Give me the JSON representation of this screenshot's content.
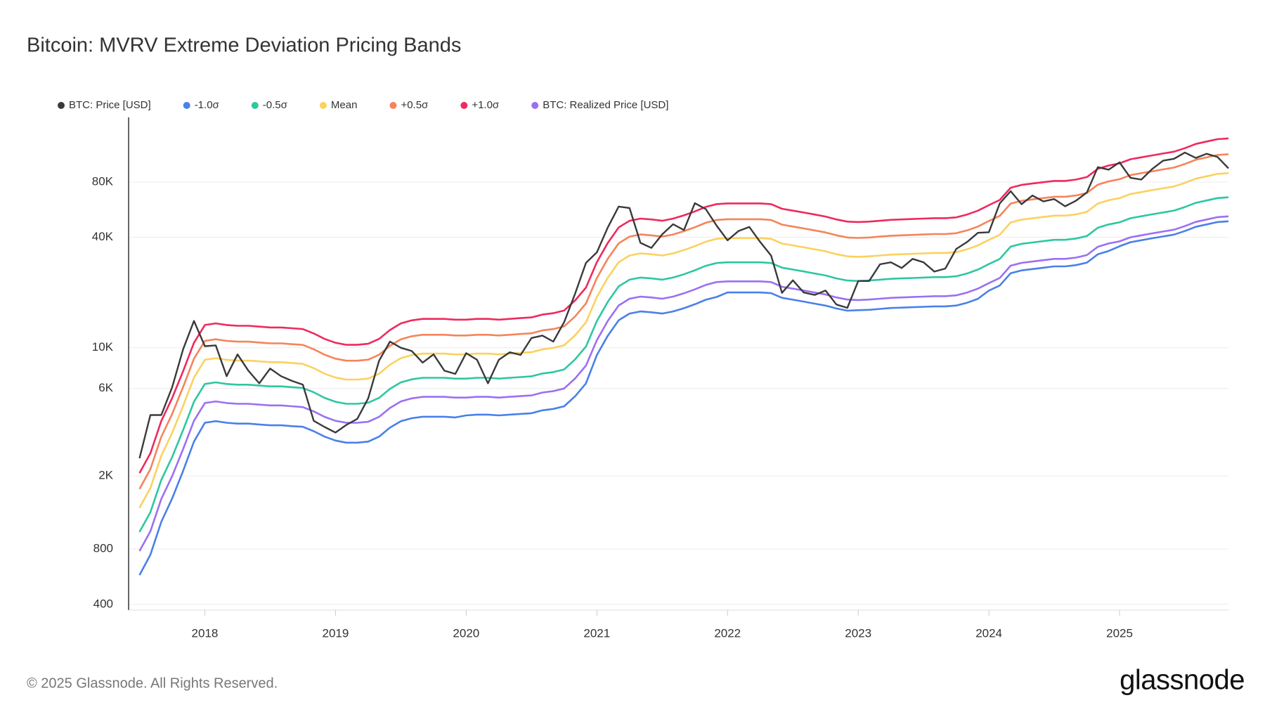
{
  "chart_data": {
    "type": "line",
    "title": "Bitcoin: MVRV Extreme Deviation Pricing Bands",
    "log_scale_y": true,
    "grid": true,
    "legend": "top-left",
    "x": [
      "2017-07",
      "2017-08",
      "2017-09",
      "2017-10",
      "2017-11",
      "2017-12",
      "2018-01",
      "2018-02",
      "2018-03",
      "2018-04",
      "2018-05",
      "2018-06",
      "2018-07",
      "2018-08",
      "2018-09",
      "2018-10",
      "2018-11",
      "2018-12",
      "2019-01",
      "2019-02",
      "2019-03",
      "2019-04",
      "2019-05",
      "2019-06",
      "2019-07",
      "2019-08",
      "2019-09",
      "2019-10",
      "2019-11",
      "2019-12",
      "2020-01",
      "2020-02",
      "2020-03",
      "2020-04",
      "2020-05",
      "2020-06",
      "2020-07",
      "2020-08",
      "2020-09",
      "2020-10",
      "2020-11",
      "2020-12",
      "2021-01",
      "2021-02",
      "2021-03",
      "2021-04",
      "2021-05",
      "2021-06",
      "2021-07",
      "2021-08",
      "2021-09",
      "2021-10",
      "2021-11",
      "2021-12",
      "2022-01",
      "2022-02",
      "2022-03",
      "2022-04",
      "2022-05",
      "2022-06",
      "2022-07",
      "2022-08",
      "2022-09",
      "2022-10",
      "2022-11",
      "2022-12",
      "2023-01",
      "2023-02",
      "2023-03",
      "2023-04",
      "2023-05",
      "2023-06",
      "2023-07",
      "2023-08",
      "2023-09",
      "2023-10",
      "2023-11",
      "2023-12",
      "2024-01",
      "2024-02",
      "2024-03",
      "2024-04",
      "2024-05",
      "2024-06",
      "2024-07",
      "2024-08",
      "2024-09",
      "2024-10",
      "2024-11",
      "2024-12",
      "2025-01",
      "2025-02",
      "2025-03",
      "2025-04",
      "2025-05",
      "2025-06",
      "2025-07",
      "2025-08",
      "2025-09",
      "2025-10",
      "2025-11"
    ],
    "xlim": [
      "2017-06",
      "2025-11"
    ],
    "xticks": [
      "2018",
      "2019",
      "2020",
      "2021",
      "2022",
      "2023",
      "2024",
      "2025"
    ],
    "ylim": [
      372,
      180000
    ],
    "yticks": [
      400,
      800,
      {
        "value": 2000,
        "label": "2K"
      },
      {
        "value": 6000,
        "label": "6K"
      },
      {
        "value": 10000,
        "label": "10K"
      },
      {
        "value": 40000,
        "label": "40K"
      },
      {
        "value": 80000,
        "label": "80K"
      }
    ],
    "series": [
      {
        "name": "BTC: Price [USD]",
        "color": "#3a3a3a",
        "values": [
          2500,
          4300,
          4300,
          6100,
          9800,
          14000,
          10200,
          10300,
          7000,
          9200,
          7500,
          6400,
          7700,
          7000,
          6600,
          6300,
          4000,
          3700,
          3450,
          3800,
          4100,
          5300,
          8500,
          10800,
          10000,
          9600,
          8300,
          9200,
          7500,
          7200,
          9350,
          8600,
          6400,
          8600,
          9450,
          9140,
          11300,
          11650,
          10800,
          13800,
          19700,
          29000,
          33100,
          45200,
          58800,
          57700,
          37300,
          35000,
          41500,
          47100,
          43800,
          61300,
          57000,
          46300,
          38500,
          43200,
          45500,
          37700,
          31800,
          19900,
          23300,
          20000,
          19400,
          20500,
          17200,
          16500,
          23100,
          23100,
          28500,
          29200,
          27200,
          30500,
          29200,
          26000,
          27000,
          34500,
          37700,
          42300,
          42600,
          61200,
          71300,
          60600,
          67500,
          62700,
          64600,
          59000,
          63300,
          70200,
          96400,
          93400,
          102400,
          84400,
          82500,
          94200,
          104600,
          107100,
          115700,
          108200,
          114000,
          109500,
          95000
        ]
      },
      {
        "name": "-1.0σ",
        "color": "#4a80ea",
        "values": [
          577,
          745,
          1125,
          1510,
          2130,
          3080,
          3900,
          3980,
          3900,
          3860,
          3860,
          3820,
          3780,
          3780,
          3740,
          3710,
          3510,
          3280,
          3120,
          3040,
          3040,
          3080,
          3280,
          3670,
          3980,
          4130,
          4210,
          4210,
          4210,
          4170,
          4280,
          4320,
          4320,
          4280,
          4320,
          4360,
          4400,
          4560,
          4640,
          4800,
          5440,
          6400,
          9130,
          11620,
          14110,
          15360,
          15770,
          15600,
          15360,
          15770,
          16430,
          17260,
          18260,
          18920,
          20010,
          20010,
          20010,
          20010,
          19840,
          18710,
          18270,
          17840,
          17400,
          16970,
          16360,
          15920,
          16020,
          16100,
          16280,
          16460,
          16540,
          16630,
          16720,
          16810,
          16810,
          16980,
          17600,
          18480,
          20480,
          21840,
          25480,
          26390,
          26850,
          27300,
          27760,
          27760,
          28210,
          29120,
          32310,
          33670,
          35720,
          37600,
          38540,
          39480,
          40420,
          41360,
          43240,
          45590,
          47000,
          48410,
          48880
        ]
      },
      {
        "name": "-0.5σ",
        "color": "#2ec7a0",
        "values": [
          991,
          1270,
          1905,
          2540,
          3556,
          5080,
          6350,
          6480,
          6350,
          6290,
          6290,
          6220,
          6160,
          6160,
          6100,
          6030,
          5720,
          5330,
          5080,
          4950,
          4950,
          5020,
          5330,
          5970,
          6480,
          6730,
          6860,
          6860,
          6860,
          6790,
          6790,
          6860,
          6860,
          6790,
          6860,
          6920,
          6990,
          7240,
          7370,
          7620,
          8640,
          10160,
          13970,
          17780,
          21590,
          23500,
          24130,
          23880,
          23500,
          24130,
          25150,
          26420,
          27940,
          28960,
          29210,
          29210,
          29210,
          29210,
          28960,
          27310,
          26670,
          26040,
          25400,
          24770,
          23880,
          23240,
          23110,
          23240,
          23500,
          23750,
          23880,
          24000,
          24130,
          24260,
          24260,
          24510,
          25400,
          26670,
          28580,
          30480,
          35560,
          36830,
          37470,
          38100,
          38740,
          38740,
          39370,
          40640,
          45090,
          46990,
          48260,
          50800,
          52070,
          53340,
          54610,
          55880,
          58420,
          61600,
          63500,
          65410,
          66040
        ]
      },
      {
        "name": "Mean",
        "color": "#fbd15f",
        "values": [
          1342,
          1720,
          2580,
          3440,
          4816,
          6880,
          8600,
          8770,
          8600,
          8510,
          8510,
          8430,
          8340,
          8340,
          8260,
          8170,
          7740,
          7220,
          6880,
          6710,
          6710,
          6790,
          7220,
          8080,
          8770,
          9120,
          9290,
          9290,
          9290,
          9200,
          9200,
          9290,
          9290,
          9200,
          9290,
          9370,
          9460,
          9800,
          9980,
          10320,
          11700,
          13760,
          18920,
          24080,
          29240,
          31820,
          32680,
          32340,
          31820,
          32680,
          34060,
          35780,
          37840,
          39220,
          39560,
          39560,
          39560,
          39560,
          39220,
          36980,
          36120,
          35260,
          34400,
          33540,
          32340,
          31480,
          31300,
          31480,
          31820,
          32160,
          32340,
          32510,
          32680,
          32850,
          32850,
          33200,
          34400,
          36120,
          38700,
          41280,
          48160,
          49880,
          50740,
          51600,
          52460,
          52460,
          53320,
          55040,
          61060,
          63640,
          65360,
          68800,
          70520,
          72240,
          73960,
          75680,
          79120,
          83420,
          86000,
          88580,
          89440
        ]
      },
      {
        "name": "+0.5σ",
        "color": "#f5845a",
        "values": [
          1700,
          2180,
          3270,
          4360,
          6104,
          8720,
          10900,
          11120,
          10900,
          10790,
          10790,
          10680,
          10570,
          10570,
          10460,
          10360,
          9810,
          9160,
          8720,
          8500,
          8500,
          8610,
          9160,
          10250,
          11120,
          11550,
          11770,
          11770,
          11770,
          11660,
          11660,
          11770,
          11770,
          11660,
          11770,
          11880,
          11990,
          12430,
          12640,
          13080,
          14820,
          17440,
          23980,
          30520,
          37060,
          40330,
          41420,
          40980,
          40330,
          41420,
          43160,
          45340,
          47960,
          49700,
          50140,
          50140,
          50140,
          50140,
          49700,
          46870,
          45780,
          44690,
          43600,
          42510,
          40980,
          39890,
          39680,
          39890,
          40330,
          40770,
          40980,
          41200,
          41420,
          41640,
          41640,
          42070,
          43600,
          45780,
          49050,
          52320,
          61040,
          63220,
          64310,
          65400,
          66490,
          66490,
          67580,
          69760,
          77390,
          80660,
          82840,
          87200,
          89380,
          91560,
          93740,
          95920,
          100280,
          105730,
          109000,
          112270,
          113360
        ]
      },
      {
        "name": "+1.0σ",
        "color": "#ee2a5e",
        "values": [
          2075,
          2660,
          3990,
          5320,
          7448,
          10640,
          13300,
          13570,
          13300,
          13170,
          13170,
          13030,
          12900,
          12900,
          12770,
          12640,
          11970,
          11170,
          10640,
          10370,
          10370,
          10510,
          11170,
          12500,
          13570,
          14100,
          14360,
          14360,
          14360,
          14230,
          14230,
          14360,
          14360,
          14230,
          14360,
          14500,
          14630,
          15160,
          15430,
          15960,
          18090,
          21280,
          29260,
          37240,
          45220,
          49210,
          50540,
          50010,
          49210,
          50540,
          52670,
          55330,
          58520,
          60650,
          61180,
          61180,
          61180,
          61180,
          60650,
          57190,
          55860,
          54530,
          53200,
          51870,
          50010,
          48680,
          48410,
          48680,
          49210,
          49740,
          50010,
          50270,
          50540,
          50810,
          50810,
          51340,
          53200,
          55860,
          59850,
          63840,
          74480,
          77140,
          78470,
          79800,
          81130,
          81130,
          82460,
          85120,
          94430,
          98420,
          101080,
          106400,
          109060,
          111720,
          114380,
          117040,
          122360,
          129010,
          133000,
          136990,
          138320
        ]
      },
      {
        "name": "BTC: Realized Price [USD]",
        "color": "#9b70f3",
        "values": [
          780,
          1000,
          1500,
          2000,
          2800,
          4000,
          5000,
          5100,
          5000,
          4950,
          4950,
          4900,
          4850,
          4850,
          4800,
          4750,
          4500,
          4200,
          4000,
          3900,
          3900,
          3950,
          4200,
          4700,
          5100,
          5300,
          5400,
          5400,
          5400,
          5350,
          5350,
          5400,
          5400,
          5350,
          5400,
          5450,
          5500,
          5700,
          5800,
          6000,
          6800,
          8000,
          11000,
          14000,
          17000,
          18500,
          19000,
          18800,
          18500,
          19000,
          19800,
          20800,
          22000,
          22800,
          23000,
          23000,
          23000,
          23000,
          22800,
          21500,
          21000,
          20500,
          20000,
          19500,
          18800,
          18300,
          18200,
          18300,
          18500,
          18700,
          18800,
          18900,
          19000,
          19100,
          19100,
          19300,
          20000,
          21000,
          22500,
          24000,
          28000,
          29000,
          29500,
          30000,
          30500,
          30500,
          31000,
          32000,
          35500,
          37000,
          38000,
          40000,
          41000,
          42000,
          43000,
          44000,
          46000,
          48500,
          50000,
          51500,
          52000
        ]
      }
    ]
  },
  "footer": {
    "copyright": "© 2025 Glassnode. All Rights Reserved.",
    "brand": "glassnode"
  }
}
